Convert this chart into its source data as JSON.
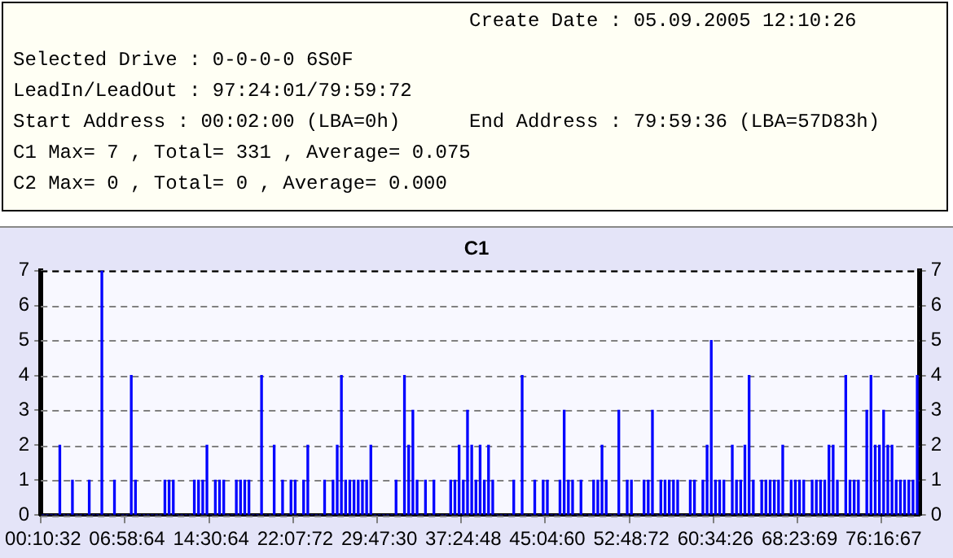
{
  "chart_data": {
    "type": "bar",
    "title": "C1",
    "annotations": [
      "Create Date : 05.09.2005 12:10:26",
      "Selected Drive : 0-0-0-0 6S0F",
      "LeadIn/LeadOut : 97:24:01/79:59:72",
      "Start Address : 00:02:00 (LBA=0h)",
      "End Address : 79:59:36 (LBA=57D83h)",
      "C1 Max= 7 , Total= 331 , Average= 0.075",
      "C2 Max= 0 , Total= 0 , Average= 0.000"
    ],
    "categories": [
      "00:10:32",
      null,
      null,
      null,
      null,
      null,
      null,
      null,
      null,
      null,
      null,
      null,
      null,
      null,
      null,
      null,
      null,
      null,
      null,
      null,
      "06:58:64",
      null,
      null,
      null,
      null,
      null,
      null,
      null,
      null,
      null,
      null,
      null,
      null,
      null,
      null,
      null,
      null,
      null,
      null,
      null,
      "14:30:64",
      null,
      null,
      null,
      null,
      null,
      null,
      null,
      null,
      null,
      null,
      null,
      null,
      null,
      null,
      null,
      null,
      null,
      null,
      null,
      "22:07:72",
      null,
      null,
      null,
      null,
      null,
      null,
      null,
      null,
      null,
      null,
      null,
      null,
      null,
      null,
      null,
      null,
      null,
      null,
      null,
      "29:47:30",
      null,
      null,
      null,
      null,
      null,
      null,
      null,
      null,
      null,
      null,
      null,
      null,
      null,
      null,
      null,
      null,
      null,
      null,
      null,
      "37:24:48",
      null,
      null,
      null,
      null,
      null,
      null,
      null,
      null,
      null,
      null,
      null,
      null,
      null,
      null,
      null,
      null,
      null,
      null,
      null,
      "45:04:60",
      null,
      null,
      null,
      null,
      null,
      null,
      null,
      null,
      null,
      null,
      null,
      null,
      null,
      null,
      null,
      null,
      null,
      null,
      null,
      "52:48:72",
      null,
      null,
      null,
      null,
      null,
      null,
      null,
      null,
      null,
      null,
      null,
      null,
      null,
      null,
      null,
      null,
      null,
      null,
      null,
      "60:34:26",
      null,
      null,
      null,
      null,
      null,
      null,
      null,
      null,
      null,
      null,
      null,
      null,
      null,
      null,
      null,
      null,
      null,
      null,
      null,
      "68:23:69",
      null,
      null,
      null,
      null,
      null,
      null,
      null,
      null,
      null,
      null,
      null,
      null,
      null,
      null,
      null,
      null,
      null,
      null,
      null,
      "76:16:67",
      null,
      null,
      null,
      null,
      null,
      null,
      null,
      null
    ],
    "values": [
      0,
      0,
      0,
      0,
      2,
      0,
      0,
      1,
      0,
      0,
      0,
      1,
      0,
      0,
      7,
      0,
      0,
      1,
      0,
      0,
      0,
      4,
      1,
      0,
      0,
      0,
      0,
      0,
      0,
      1,
      1,
      1,
      0,
      0,
      0,
      0,
      1,
      1,
      1,
      2,
      0,
      1,
      1,
      1,
      0,
      0,
      1,
      1,
      1,
      1,
      0,
      0,
      4,
      0,
      0,
      2,
      0,
      1,
      0,
      1,
      1,
      0,
      1,
      2,
      0,
      0,
      0,
      1,
      0,
      1,
      2,
      4,
      1,
      1,
      1,
      1,
      1,
      1,
      2,
      0,
      0,
      0,
      0,
      0,
      1,
      0,
      4,
      2,
      3,
      1,
      0,
      1,
      0,
      1,
      0,
      0,
      0,
      1,
      1,
      2,
      1,
      3,
      2,
      1,
      2,
      1,
      2,
      1,
      0,
      0,
      0,
      0,
      1,
      0,
      4,
      0,
      0,
      1,
      0,
      1,
      1,
      0,
      0,
      1,
      3,
      1,
      1,
      0,
      1,
      0,
      0,
      1,
      1,
      2,
      1,
      0,
      0,
      3,
      0,
      1,
      1,
      0,
      0,
      1,
      1,
      3,
      0,
      1,
      1,
      1,
      1,
      1,
      0,
      0,
      1,
      1,
      0,
      1,
      2,
      5,
      1,
      1,
      1,
      0,
      2,
      1,
      1,
      2,
      4,
      1,
      0,
      1,
      1,
      1,
      1,
      1,
      2,
      0,
      1,
      1,
      1,
      1,
      0,
      1,
      1,
      1,
      1,
      2,
      2,
      1,
      0,
      4,
      1,
      1,
      1,
      0,
      3,
      4,
      2,
      2,
      3,
      2,
      2,
      1,
      1,
      1,
      1,
      1,
      4
    ],
    "color": "#0000ff",
    "ylim": [
      0,
      7
    ],
    "yticks": [
      0,
      1,
      2,
      3,
      4,
      5,
      6,
      7
    ],
    "y2lim": [
      0,
      7
    ],
    "y2ticks": [
      0,
      1,
      2,
      3,
      4,
      5,
      6,
      7
    ],
    "grid": "y"
  }
}
